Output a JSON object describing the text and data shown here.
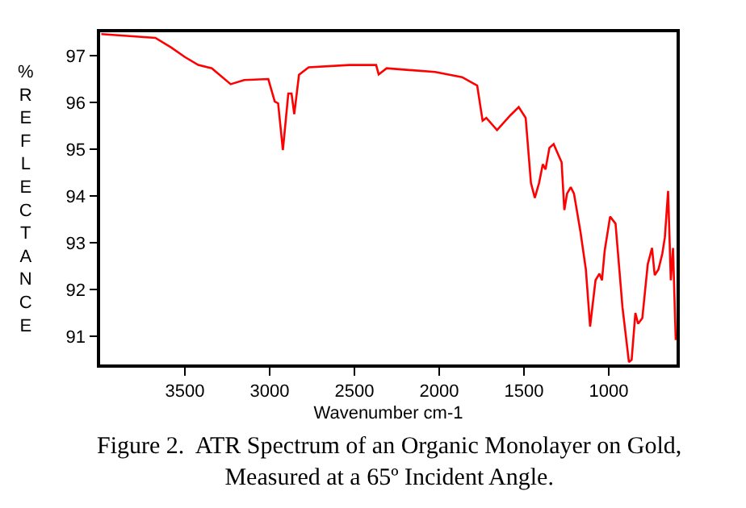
{
  "chart_data": {
    "type": "line",
    "xlabel": "Wavenumber cm-1",
    "ylabel": "% REFLECTANCE",
    "annotations": [
      "Figure 2.  ATR Spectrum of an Organic Monolayer on Gold,\nMeasured at a 65º Incident Angle."
    ],
    "xlim": [
      4000,
      600
    ],
    "xticks": [
      3500,
      3000,
      2500,
      2000,
      1500,
      1000
    ],
    "ylim": [
      90.4,
      97.5
    ],
    "yticks": [
      91,
      92,
      93,
      94,
      95,
      96,
      97
    ],
    "marker": "none",
    "line_style": "solid",
    "series": [
      {
        "color": "#ff0000",
        "x": [
          3993,
          3674,
          3579,
          3500,
          3421,
          3341,
          3230,
          3150,
          3008,
          2970,
          2950,
          2922,
          2890,
          2871,
          2855,
          2827,
          2770,
          2531,
          2372,
          2357,
          2310,
          2024,
          1865,
          1776,
          1744,
          1722,
          1659,
          1579,
          1531,
          1490,
          1459,
          1436,
          1411,
          1389,
          1373,
          1350,
          1325,
          1278,
          1262,
          1246,
          1224,
          1205,
          1167,
          1135,
          1110,
          1078,
          1055,
          1040,
          1024,
          992,
          960,
          919,
          881,
          865,
          843,
          827,
          802,
          770,
          745,
          729,
          707,
          684,
          669,
          650,
          634,
          621,
          605
        ],
        "values": [
          97.46,
          97.38,
          97.17,
          96.97,
          96.8,
          96.73,
          96.39,
          96.48,
          96.5,
          96.02,
          95.98,
          94.98,
          96.19,
          96.19,
          95.75,
          96.59,
          96.75,
          96.8,
          96.8,
          96.6,
          96.73,
          96.65,
          96.54,
          96.36,
          95.61,
          95.67,
          95.41,
          95.73,
          95.9,
          95.67,
          94.28,
          93.96,
          94.28,
          94.68,
          94.57,
          95.03,
          95.11,
          94.72,
          93.7,
          94.05,
          94.19,
          94.05,
          93.24,
          92.43,
          91.21,
          92.2,
          92.34,
          92.2,
          92.83,
          93.56,
          93.41,
          91.62,
          90.45,
          90.5,
          91.5,
          91.27,
          91.39,
          92.54,
          92.89,
          92.31,
          92.43,
          92.77,
          93.12,
          94.11,
          92.2,
          92.89,
          90.92
        ]
      }
    ]
  }
}
